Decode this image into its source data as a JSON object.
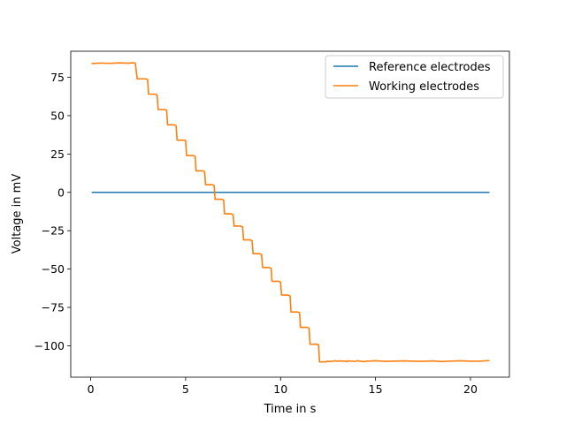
{
  "chart_data": {
    "type": "line",
    "title": "",
    "xlabel": "Time in s",
    "ylabel": "Voltage in mV",
    "xlim": [
      -1.05,
      22.05
    ],
    "ylim": [
      -120.5,
      92.0
    ],
    "xticks": [
      0,
      5,
      10,
      15,
      20
    ],
    "yticks": [
      -100,
      -75,
      -50,
      -25,
      0,
      25,
      50,
      75
    ],
    "ytick_labels": [
      "−100",
      "−75",
      "−50",
      "−25",
      "0",
      "25",
      "50",
      "75"
    ],
    "grid": false,
    "legend": "top-right",
    "series": [
      {
        "name": "Reference electrodes",
        "color": "#1f77b4",
        "x": [
          0.05,
          21.0
        ],
        "y": [
          0,
          0
        ]
      },
      {
        "name": "Working electrodes",
        "color": "#ff7f0e",
        "x": [
          0.05,
          0.5,
          1.0,
          1.5,
          2.0,
          2.2,
          2.35,
          2.45,
          2.9,
          3.0,
          3.05,
          3.4,
          3.5,
          3.55,
          3.9,
          4.0,
          4.05,
          4.4,
          4.5,
          4.55,
          4.9,
          5.0,
          5.05,
          5.4,
          5.5,
          5.55,
          5.9,
          6.0,
          6.05,
          6.4,
          6.5,
          6.55,
          6.9,
          7.0,
          7.05,
          7.4,
          7.5,
          7.55,
          7.9,
          8.0,
          8.05,
          8.4,
          8.5,
          8.55,
          8.9,
          9.0,
          9.05,
          9.4,
          9.5,
          9.55,
          9.9,
          10.0,
          10.05,
          10.4,
          10.5,
          10.55,
          10.9,
          11.0,
          11.05,
          11.4,
          11.5,
          11.55,
          11.9,
          12.0,
          12.05,
          12.4,
          12.5,
          12.55,
          12.9,
          13.0,
          13.05,
          13.4,
          13.5,
          13.55,
          13.9,
          14.0,
          14.05,
          14.4,
          14.5,
          15.0,
          15.5,
          16.0,
          16.5,
          17.0,
          17.5,
          18.0,
          18.5,
          19.0,
          19.5,
          20.0,
          20.5,
          21.0
        ],
        "y": [
          84,
          84.3,
          84.1,
          84.4,
          84.2,
          84.5,
          84.3,
          74,
          74,
          73.5,
          64,
          64,
          63.5,
          54,
          54,
          53.5,
          44,
          44,
          43.5,
          34,
          34,
          33.8,
          24,
          24,
          23.5,
          14,
          14,
          13.5,
          5,
          5,
          4.5,
          -4.5,
          -4.5,
          -5,
          -14,
          -14,
          -14.5,
          -22,
          -22,
          -22.5,
          -31,
          -31,
          -31.5,
          -40,
          -40,
          -40.5,
          -49,
          -49,
          -49.5,
          -58,
          -58,
          -58.5,
          -67,
          -67,
          -67.5,
          -78,
          -78,
          -78.5,
          -88,
          -88,
          -88.5,
          -99,
          -99,
          -99.5,
          -110.5,
          -110.5,
          -110,
          -110.3,
          -109.8,
          -110.2,
          -109.9,
          -110.1,
          -110.3,
          -109.9,
          -110.2,
          -110,
          -109.8,
          -110.4,
          -110.1,
          -109.8,
          -110.2,
          -110,
          -109.9,
          -110.1,
          -110.2,
          -109.9,
          -110.3,
          -110,
          -109.8,
          -110.1,
          -110,
          -109.7
        ]
      }
    ]
  }
}
